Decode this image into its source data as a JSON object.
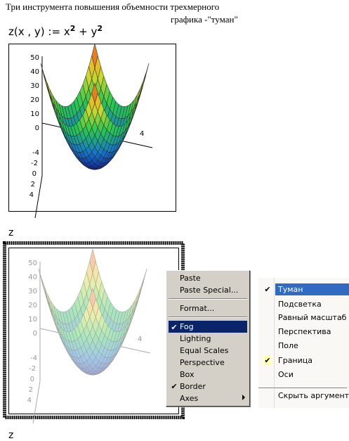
{
  "header": {
    "line1": "Три инструмента повышения объемности трехмерного",
    "line2": "графика -\"туман\""
  },
  "formula": {
    "name": "z",
    "args": "(x , y)",
    "assign": ":=",
    "a": "x",
    "p1": "2",
    "plus": "+",
    "b": "y",
    "p2": "2"
  },
  "plots": [
    {
      "zticks": [
        "50",
        "40",
        "30",
        "20",
        "10",
        "0"
      ],
      "yticks": [
        "-4",
        "-2",
        "0",
        "2",
        "4"
      ],
      "xtick": "4",
      "label": "z"
    },
    {
      "zticks": [
        "50",
        "40",
        "30",
        "20",
        "10",
        "0"
      ],
      "yticks": [
        "-4",
        "-2",
        "0",
        "2",
        "4"
      ],
      "xtick": "4",
      "label": "z"
    }
  ],
  "menu_en": {
    "items": [
      "Paste",
      "Paste Special...",
      "Format...",
      "Fog",
      "Lighting",
      "Equal Scales",
      "Perspective",
      "Box",
      "Border",
      "Axes"
    ]
  },
  "menu_ru": {
    "items": [
      "Туман",
      "Подсветка",
      "Равный масштаб",
      "Перспектива",
      "Поле",
      "Граница",
      "Оси",
      "Скрыть аргументы"
    ]
  }
}
